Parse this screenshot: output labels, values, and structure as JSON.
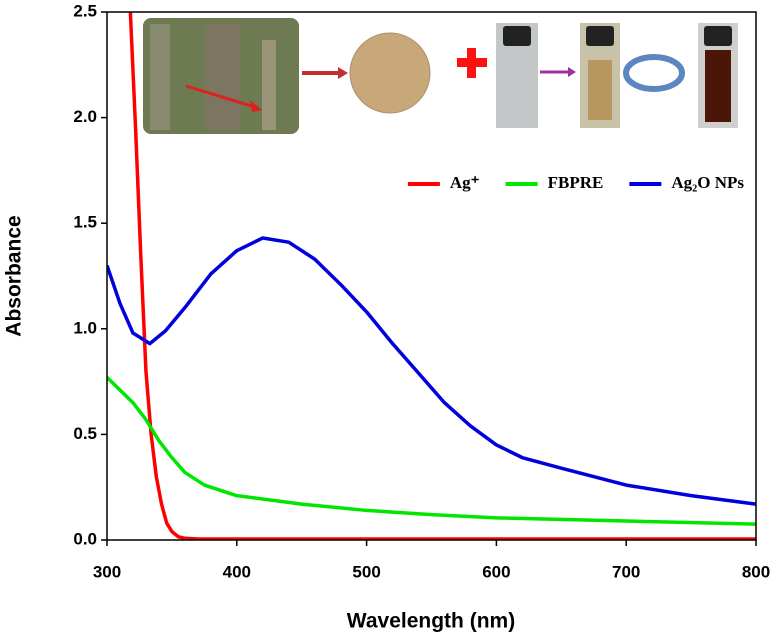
{
  "chart_data": {
    "type": "line",
    "x_label": "Wavelength (nm)",
    "y_label": "Absorbance",
    "xlim": [
      300,
      800
    ],
    "xticks": [
      300,
      400,
      500,
      600,
      700,
      800
    ],
    "ylim": [
      0,
      2.5
    ],
    "yticks": [
      {
        "value": 0,
        "label": "0.0"
      },
      {
        "value": 0.5,
        "label": "0.5"
      },
      {
        "value": 1,
        "label": "1.0"
      },
      {
        "value": 1.5,
        "label": "1.5"
      },
      {
        "value": 2,
        "label": "2.0"
      },
      {
        "value": 2.5,
        "label": "2.5"
      }
    ],
    "legend": "upper right",
    "grid": false,
    "series": [
      {
        "name": "Ag⁺",
        "color": "#ff0000",
        "x": [
          318,
          322,
          326,
          330,
          334,
          338,
          342,
          346,
          350,
          355,
          360,
          370,
          400,
          500,
          600,
          700,
          800
        ],
        "values": [
          2.5,
          1.95,
          1.35,
          0.8,
          0.5,
          0.3,
          0.17,
          0.08,
          0.04,
          0.015,
          0.008,
          0.005,
          0.005,
          0.005,
          0.005,
          0.005,
          0.005
        ]
      },
      {
        "name": "FBPRE",
        "color": "#00e600",
        "x": [
          300,
          320,
          330,
          340,
          350,
          360,
          375,
          400,
          450,
          500,
          550,
          600,
          700,
          800
        ],
        "values": [
          0.77,
          0.65,
          0.57,
          0.47,
          0.39,
          0.32,
          0.26,
          0.21,
          0.17,
          0.14,
          0.12,
          0.105,
          0.09,
          0.075
        ]
      },
      {
        "name": "Ag₂O NPs",
        "color": "#0000dd",
        "x": [
          300,
          310,
          320,
          333,
          345,
          360,
          380,
          400,
          420,
          440,
          460,
          480,
          500,
          520,
          540,
          560,
          580,
          600,
          620,
          650,
          700,
          750,
          800
        ],
        "values": [
          1.3,
          1.12,
          0.98,
          0.93,
          0.99,
          1.1,
          1.26,
          1.37,
          1.43,
          1.41,
          1.33,
          1.21,
          1.08,
          0.93,
          0.79,
          0.65,
          0.54,
          0.45,
          0.39,
          0.34,
          0.26,
          0.21,
          0.17
        ]
      }
    ]
  }
}
